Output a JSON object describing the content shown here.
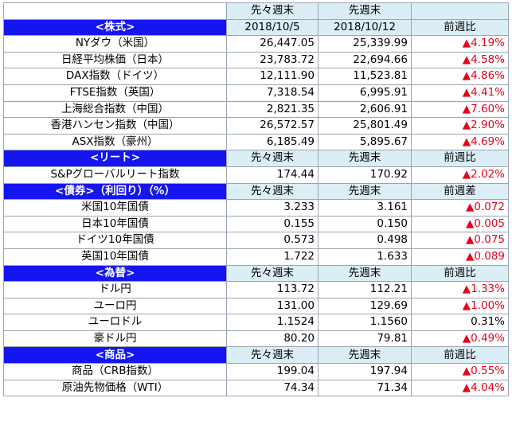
{
  "header": {
    "col_prev2": "先々週末",
    "col_prev1": "先週末",
    "date_prev2": "2018/10/5",
    "date_prev1": "2018/10/12",
    "col_change": "前週比"
  },
  "sections": [
    {
      "title": "<株式>",
      "cols": null,
      "rows": [
        {
          "name": "NYダウ（米国）",
          "v1": "26,447.05",
          "v2": "25,339.99",
          "chg": "▲4.19%",
          "up": true
        },
        {
          "name": "日経平均株価（日本）",
          "v1": "23,783.72",
          "v2": "22,694.66",
          "chg": "▲4.58%",
          "up": true
        },
        {
          "name": "DAX指数（ドイツ）",
          "v1": "12,111.90",
          "v2": "11,523.81",
          "chg": "▲4.86%",
          "up": true
        },
        {
          "name": "FTSE指数（英国）",
          "v1": "7,318.54",
          "v2": "6,995.91",
          "chg": "▲4.41%",
          "up": true
        },
        {
          "name": "上海総合指数（中国）",
          "v1": "2,821.35",
          "v2": "2,606.91",
          "chg": "▲7.60%",
          "up": true
        },
        {
          "name": "香港ハンセン指数（中国）",
          "v1": "26,572.57",
          "v2": "25,801.49",
          "chg": "▲2.90%",
          "up": true
        },
        {
          "name": "ASX指数（豪州）",
          "v1": "6,185.49",
          "v2": "5,895.67",
          "chg": "▲4.69%",
          "up": true
        }
      ]
    },
    {
      "title": "<リート>",
      "cols": [
        "先々週末",
        "先週末",
        "前週比"
      ],
      "rows": [
        {
          "name": "S&Pグローバルリート指数",
          "v1": "174.44",
          "v2": "170.92",
          "chg": "▲2.02%",
          "up": true
        }
      ]
    },
    {
      "title": "<債券>（利回り）（%）",
      "cols": [
        "先々週末",
        "先週末",
        "前週差"
      ],
      "rows": [
        {
          "name": "米国10年国債",
          "v1": "3.233",
          "v2": "3.161",
          "chg": "▲0.072",
          "up": true
        },
        {
          "name": "日本10年国債",
          "v1": "0.155",
          "v2": "0.150",
          "chg": "▲0.005",
          "up": true
        },
        {
          "name": "ドイツ10年国債",
          "v1": "0.573",
          "v2": "0.498",
          "chg": "▲0.075",
          "up": true
        },
        {
          "name": "英国10年国債",
          "v1": "1.722",
          "v2": "1.633",
          "chg": "▲0.089",
          "up": true
        }
      ]
    },
    {
      "title": "<為替>",
      "cols": [
        "先々週末",
        "先週末",
        "前週比"
      ],
      "rows": [
        {
          "name": "ドル円",
          "v1": "113.72",
          "v2": "112.21",
          "chg": "▲1.33%",
          "up": true
        },
        {
          "name": "ユーロ円",
          "v1": "131.00",
          "v2": "129.69",
          "chg": "▲1.00%",
          "up": true
        },
        {
          "name": "ユーロドル",
          "v1": "1.1524",
          "v2": "1.1560",
          "chg": "0.31%",
          "up": false
        },
        {
          "name": "豪ドル円",
          "v1": "80.20",
          "v2": "79.81",
          "chg": "▲0.49%",
          "up": true
        }
      ]
    },
    {
      "title": "<商品>",
      "cols": [
        "先々週末",
        "先週末",
        "前週比"
      ],
      "rows": [
        {
          "name": "商品（CRB指数）",
          "v1": "199.04",
          "v2": "197.94",
          "chg": "▲0.55%",
          "up": true
        },
        {
          "name": "原油先物価格（WTI）",
          "v1": "74.34",
          "v2": "71.34",
          "chg": "▲4.04%",
          "up": true
        }
      ]
    }
  ]
}
